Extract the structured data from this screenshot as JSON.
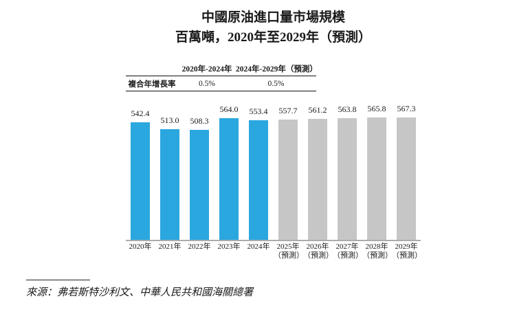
{
  "title": {
    "line1": "中國原油進口量市場規模",
    "line2": "百萬噸，2020年至2029年（預測）"
  },
  "cagr_table": {
    "row_header": "複合年增長率",
    "col_headers": [
      "2020年-2024年",
      "2024年-2029年（預測）"
    ],
    "values": [
      "0.5%",
      "0.5%"
    ]
  },
  "chart_data": {
    "type": "bar",
    "title": "中國原油進口量市場規模",
    "subtitle": "百萬噸，2020年至2029年（預測）",
    "unit_label": "百萬噸",
    "categories": [
      "2020年",
      "2021年",
      "2022年",
      "2023年",
      "2024年",
      "2025年",
      "2026年",
      "2027年",
      "2028年",
      "2029年"
    ],
    "category_notes": [
      "",
      "",
      "",
      "",
      "",
      "（預測）",
      "（預測）",
      "（預測）",
      "（預測）",
      "（預測）"
    ],
    "values": [
      542.4,
      513.0,
      508.3,
      564.0,
      553.4,
      557.7,
      561.2,
      563.8,
      565.8,
      567.3
    ],
    "forecast_start_index": 5,
    "colors": {
      "actual": "#2AA7DF",
      "forecast": "#C6C6C6"
    },
    "axis_line_color": "#ABABAB",
    "grid": false,
    "legend": "none",
    "y_axis_ticks_visible": false
  },
  "source": {
    "text": "來源：弗若斯特沙利文、中華人民共和國海關總署"
  }
}
